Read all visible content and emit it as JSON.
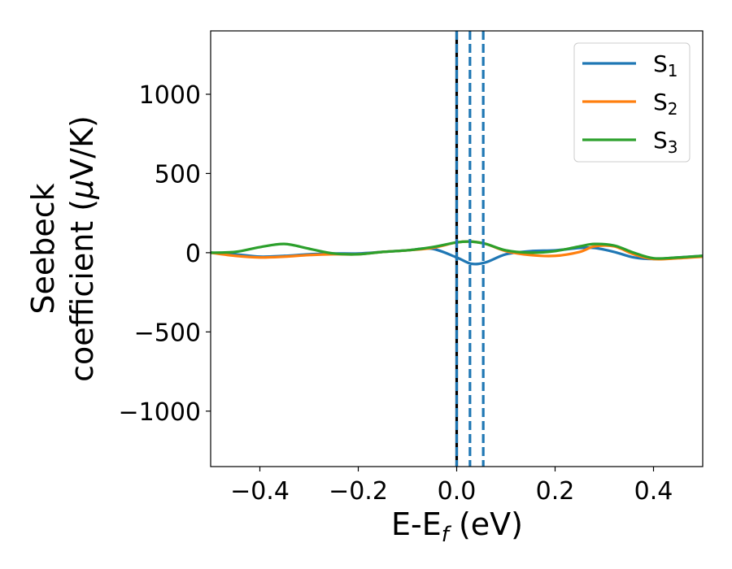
{
  "chart_data": {
    "type": "line",
    "xlabel_main": "E-E",
    "xlabel_sub": "f",
    "xlabel_unit": " (eV)",
    "ylabel_line1": "Seebeck",
    "ylabel_line2_prefix": "coefficient  (",
    "ylabel_mu": "μ",
    "ylabel_line2_suffix": "V/K)",
    "xlim": [
      -0.5,
      0.5
    ],
    "ylim": [
      -1350,
      1400
    ],
    "xticks": [
      -0.4,
      -0.2,
      0.0,
      0.2,
      0.4
    ],
    "xtick_labels": [
      "−0.4",
      "−0.2",
      "0.0",
      "0.2",
      "0.4"
    ],
    "yticks": [
      -1000,
      -500,
      0,
      500,
      1000
    ],
    "ytick_labels": [
      "−1000",
      "−500",
      "0",
      "500",
      "1000"
    ],
    "grid": false,
    "legend_position": "top-right",
    "vertical_lines": [
      {
        "x": 0.0,
        "color": "#000000",
        "style": "solid"
      },
      {
        "x": 0.0,
        "color": "#1f77b4",
        "style": "dashed"
      },
      {
        "x": 0.027,
        "color": "#1f77b4",
        "style": "dashed"
      },
      {
        "x": 0.054,
        "color": "#1f77b4",
        "style": "dashed"
      }
    ],
    "series": [
      {
        "name": "S",
        "sub": "1",
        "color": "#1f77b4",
        "x": [
          -0.5,
          -0.45,
          -0.4,
          -0.35,
          -0.3,
          -0.25,
          -0.2,
          -0.15,
          -0.1,
          -0.05,
          0.0,
          0.03,
          0.06,
          0.1,
          0.15,
          0.2,
          0.25,
          0.28,
          0.32,
          0.36,
          0.4,
          0.45,
          0.5
        ],
        "y": [
          0,
          -10,
          -25,
          -20,
          -10,
          -5,
          -5,
          5,
          15,
          25,
          -30,
          -70,
          -60,
          -10,
          10,
          15,
          30,
          30,
          5,
          -30,
          -40,
          -30,
          -20
        ]
      },
      {
        "name": "S",
        "sub": "2",
        "color": "#ff7f0e",
        "x": [
          -0.5,
          -0.45,
          -0.4,
          -0.35,
          -0.3,
          -0.25,
          -0.2,
          -0.15,
          -0.1,
          -0.05,
          0.0,
          0.03,
          0.06,
          0.1,
          0.15,
          0.2,
          0.25,
          0.28,
          0.32,
          0.36,
          0.4,
          0.45,
          0.5
        ],
        "y": [
          0,
          -20,
          -30,
          -25,
          -15,
          -10,
          -10,
          5,
          15,
          30,
          65,
          70,
          55,
          10,
          -15,
          -20,
          5,
          40,
          40,
          -10,
          -40,
          -35,
          -25
        ]
      },
      {
        "name": "S",
        "sub": "3",
        "color": "#2ca02c",
        "x": [
          -0.5,
          -0.45,
          -0.4,
          -0.35,
          -0.3,
          -0.25,
          -0.2,
          -0.15,
          -0.1,
          -0.05,
          0.0,
          0.03,
          0.06,
          0.1,
          0.15,
          0.2,
          0.25,
          0.28,
          0.32,
          0.36,
          0.4,
          0.45,
          0.5
        ],
        "y": [
          0,
          5,
          35,
          55,
          25,
          -5,
          -10,
          5,
          15,
          35,
          65,
          70,
          55,
          15,
          0,
          10,
          40,
          55,
          45,
          0,
          -35,
          -30,
          -20
        ]
      }
    ]
  }
}
